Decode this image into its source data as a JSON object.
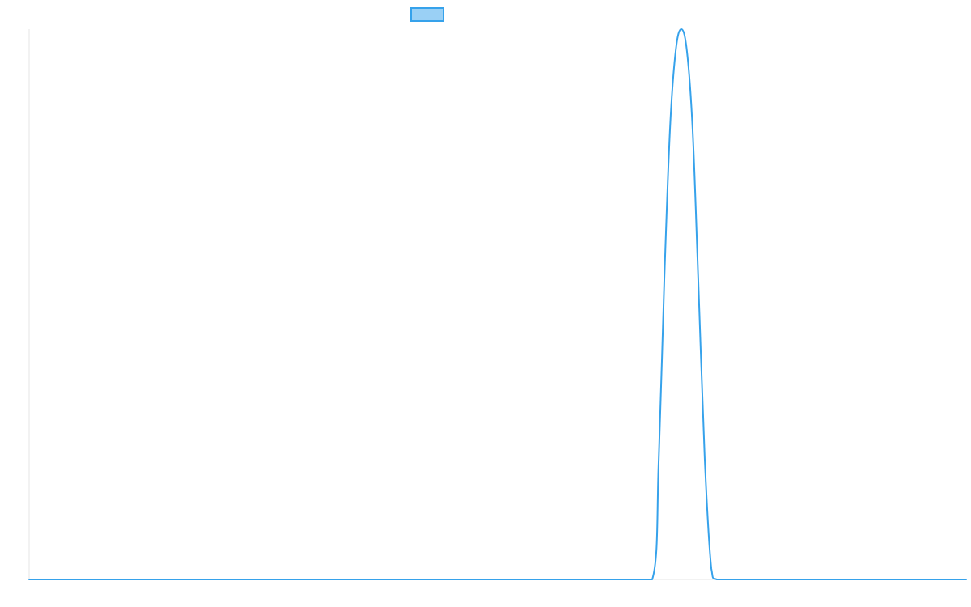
{
  "chart_data": {
    "type": "line",
    "title": "",
    "xlabel": "",
    "ylabel": "",
    "grid": false,
    "legend": {
      "placement": "top-center",
      "entries": [
        {
          "label": "",
          "color": "#36a2eb",
          "fill": "#9ad0f5"
        }
      ]
    },
    "xlim": [
      0,
      100
    ],
    "ylim": [
      0,
      1
    ],
    "series": [
      {
        "color": "#36a2eb",
        "x": [
          0,
          66.5,
          67.2,
          67.8,
          68.4,
          69.0,
          69.6,
          70.2,
          70.8,
          71.4,
          72.1,
          72.8,
          73.4,
          100
        ],
        "y": [
          0,
          0,
          0.22,
          0.55,
          0.82,
          0.96,
          1.0,
          0.96,
          0.82,
          0.55,
          0.22,
          0.02,
          0,
          0
        ]
      }
    ]
  }
}
